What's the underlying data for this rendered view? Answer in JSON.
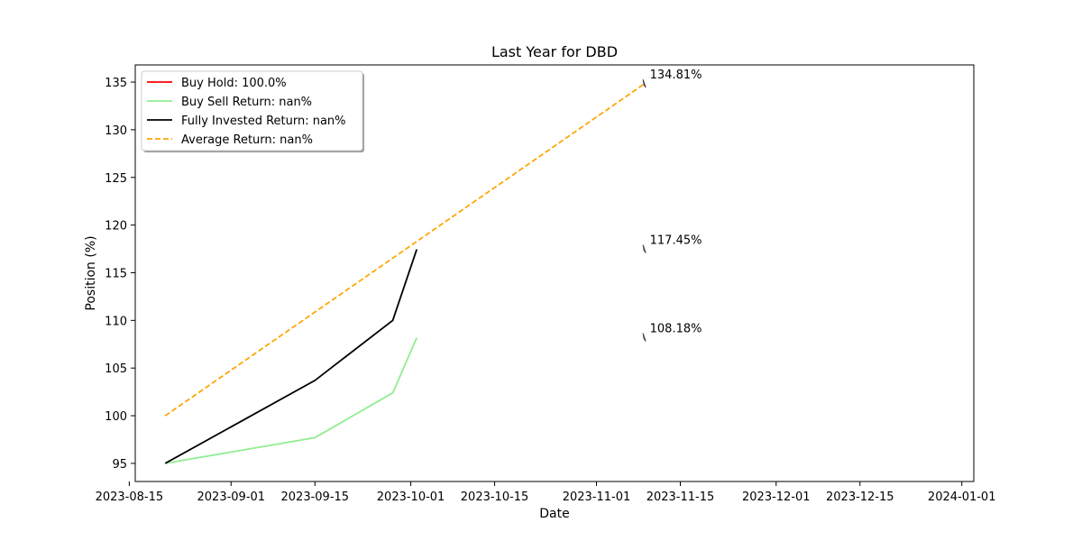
{
  "chart_data": {
    "type": "line",
    "title": "Last Year for DBD",
    "xlabel": "Date",
    "ylabel": "Position (%)",
    "xlim": [
      "2023-08-16",
      "2024-01-03"
    ],
    "ylim": [
      93.1,
      136.8
    ],
    "x_ticks": [
      "2023-08-15",
      "2023-09-01",
      "2023-09-15",
      "2023-10-01",
      "2023-10-15",
      "2023-11-01",
      "2023-11-15",
      "2023-12-01",
      "2023-12-15",
      "2024-01-01"
    ],
    "y_ticks": [
      95,
      100,
      105,
      110,
      115,
      120,
      125,
      130,
      135
    ],
    "grid": false,
    "legend_position": "upper-left",
    "series": [
      {
        "name": "Buy Hold: 100.0%",
        "color": "#ff0000",
        "dash": "solid",
        "x": [],
        "y": []
      },
      {
        "name": "Buy Sell Return: nan%",
        "color": "#90ee90",
        "dash": "solid",
        "x": [
          "2023-08-21",
          "2023-09-15",
          "2023-09-28",
          "2023-10-02"
        ],
        "y": [
          95.0,
          97.7,
          102.4,
          108.18
        ]
      },
      {
        "name": "Fully Invested Return: nan%",
        "color": "#000000",
        "dash": "solid",
        "x": [
          "2023-08-21",
          "2023-09-15",
          "2023-09-28",
          "2023-10-02"
        ],
        "y": [
          95.0,
          103.7,
          110.0,
          117.45
        ]
      },
      {
        "name": "Average Return: nan%",
        "color": "#ffa500",
        "dash": "dashed",
        "x": [
          "2023-08-21",
          "2023-11-09"
        ],
        "y": [
          100.0,
          134.81
        ]
      }
    ],
    "annotations": [
      {
        "x": "2023-11-09",
        "y": 134.81,
        "text": "134.81%"
      },
      {
        "x": "2023-11-09",
        "y": 117.45,
        "text": "117.45%"
      },
      {
        "x": "2023-11-09",
        "y": 108.18,
        "text": "108.18%"
      }
    ]
  }
}
